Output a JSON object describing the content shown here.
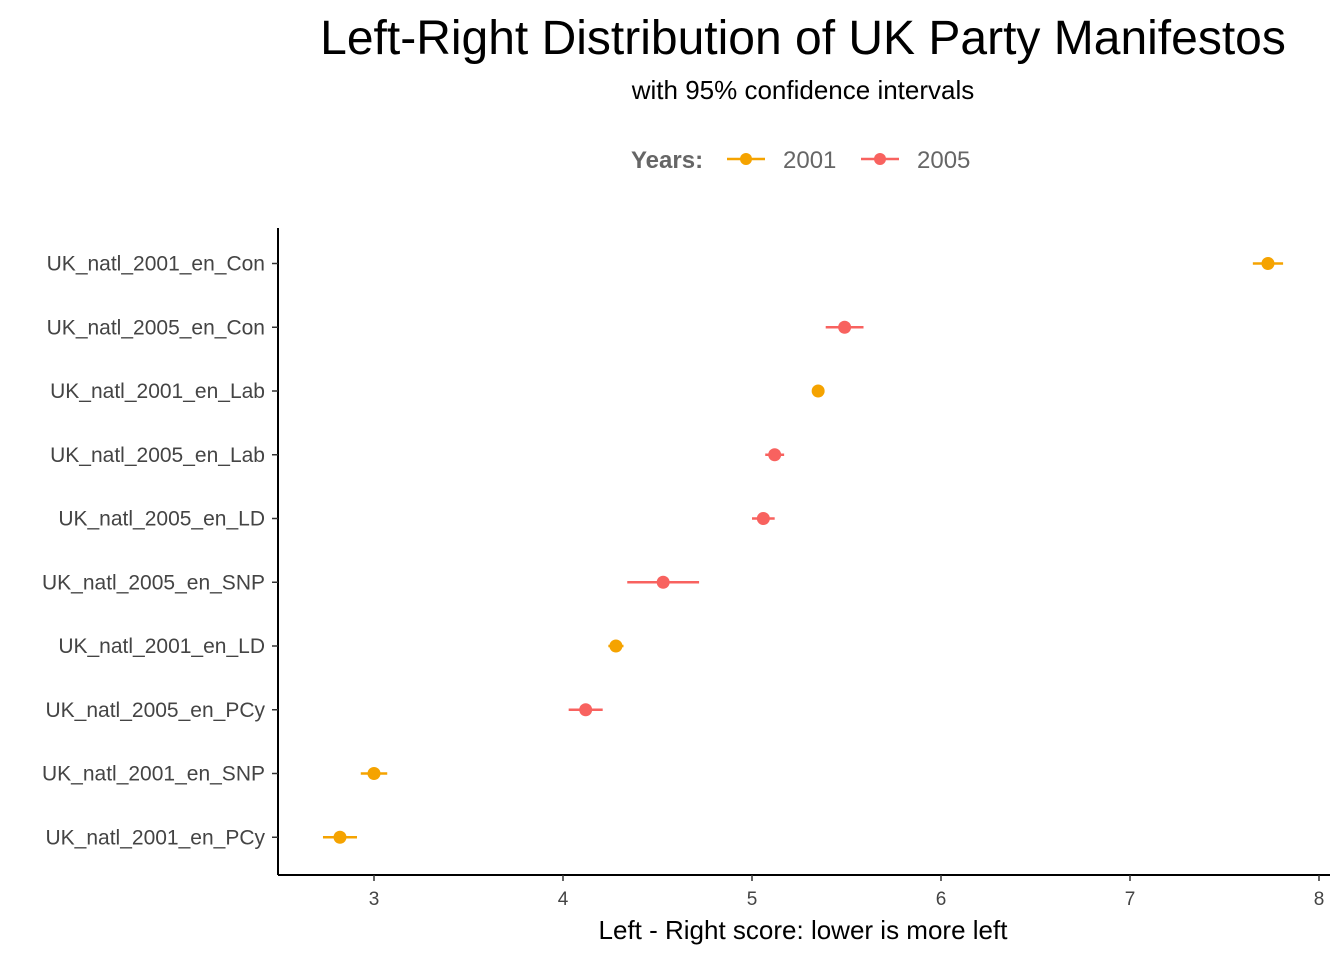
{
  "chart_data": {
    "type": "scatter",
    "title": "Left-Right Distribution of UK Party Manifestos",
    "subtitle": "with 95% confidence intervals",
    "xlabel": "Left - Right score: lower is more left",
    "ylabel": "",
    "xlim": [
      2.5,
      8.05
    ],
    "x_ticks": [
      "3",
      "4",
      "5",
      "6",
      "7",
      "8"
    ],
    "grid": false,
    "legend": {
      "title": "Years:",
      "position": "top",
      "entries": [
        {
          "label": "2001",
          "color": "#F5A300"
        },
        {
          "label": "2005",
          "color": "#F8625F"
        }
      ]
    },
    "categories": [
      "UK_natl_2001_en_Con",
      "UK_natl_2005_en_Con",
      "UK_natl_2001_en_Lab",
      "UK_natl_2005_en_Lab",
      "UK_natl_2005_en_LD",
      "UK_natl_2005_en_SNP",
      "UK_natl_2001_en_LD",
      "UK_natl_2005_en_PCy",
      "UK_natl_2001_en_SNP",
      "UK_natl_2001_en_PCy"
    ],
    "points": [
      {
        "category": "UK_natl_2001_en_Con",
        "year": "2001",
        "value": 7.73,
        "lower": 7.65,
        "upper": 7.81
      },
      {
        "category": "UK_natl_2005_en_Con",
        "year": "2005",
        "value": 5.49,
        "lower": 5.39,
        "upper": 5.59
      },
      {
        "category": "UK_natl_2001_en_Lab",
        "year": "2001",
        "value": 5.35,
        "lower": 5.32,
        "upper": 5.38
      },
      {
        "category": "UK_natl_2005_en_Lab",
        "year": "2005",
        "value": 5.12,
        "lower": 5.07,
        "upper": 5.17
      },
      {
        "category": "UK_natl_2005_en_LD",
        "year": "2005",
        "value": 5.06,
        "lower": 5.0,
        "upper": 5.12
      },
      {
        "category": "UK_natl_2005_en_SNP",
        "year": "2005",
        "value": 4.53,
        "lower": 4.34,
        "upper": 4.72
      },
      {
        "category": "UK_natl_2001_en_LD",
        "year": "2001",
        "value": 4.28,
        "lower": 4.24,
        "upper": 4.32
      },
      {
        "category": "UK_natl_2005_en_PCy",
        "year": "2005",
        "value": 4.12,
        "lower": 4.03,
        "upper": 4.21
      },
      {
        "category": "UK_natl_2001_en_SNP",
        "year": "2001",
        "value": 3.0,
        "lower": 2.93,
        "upper": 3.07
      },
      {
        "category": "UK_natl_2001_en_PCy",
        "year": "2001",
        "value": 2.82,
        "lower": 2.73,
        "upper": 2.91
      }
    ]
  }
}
